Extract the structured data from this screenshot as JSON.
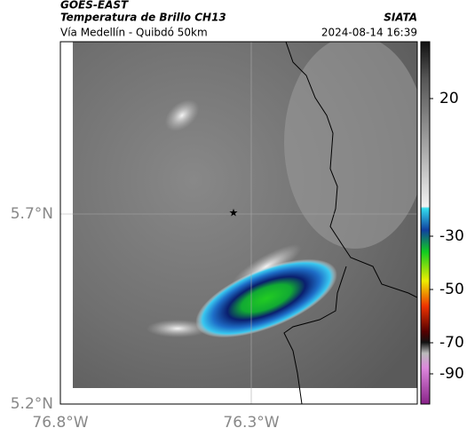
{
  "header": {
    "source": "GOES-EAST",
    "product": "Temperatura de Brillo CH13",
    "org": "SIATA",
    "route": "Vía Medellín - Quibdó 50km",
    "timestamp": "2024-08-14 16:39"
  },
  "map": {
    "lat_labels": [
      "5.7°N",
      "5.2°N"
    ],
    "lon_labels": [
      "76.8°W",
      "76.3°W"
    ]
  },
  "colorbar": {
    "ticks": [
      "20",
      "-30",
      "-50",
      "-70",
      "-90"
    ]
  }
}
